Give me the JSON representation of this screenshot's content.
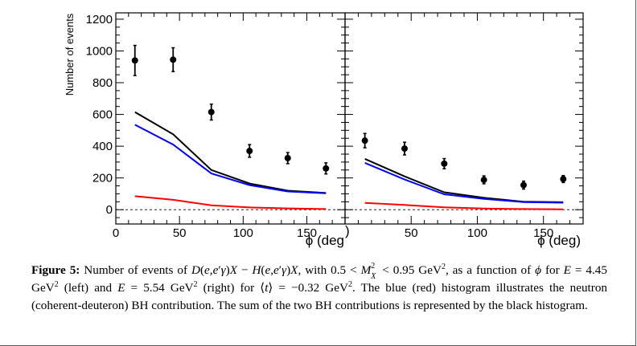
{
  "chart_data": [
    {
      "type": "line",
      "panel": "left",
      "ylabel": "Number of events",
      "xlabel": "",
      "ylim": [
        -90,
        1240
      ],
      "xlim": [
        0,
        180
      ],
      "yticks": [
        0,
        200,
        400,
        600,
        800,
        1000,
        1200
      ],
      "xticks": [
        0,
        50,
        100,
        150
      ],
      "x": [
        15,
        45,
        75,
        105,
        135,
        165
      ],
      "data_points": {
        "y": [
          940,
          945,
          615,
          370,
          325,
          260
        ],
        "yerr": [
          95,
          75,
          50,
          40,
          35,
          35
        ]
      },
      "series": [
        {
          "color": "#000000",
          "values": [
            615,
            475,
            250,
            165,
            120,
            105
          ]
        },
        {
          "color": "#0000ff",
          "values": [
            535,
            410,
            228,
            155,
            115,
            103
          ]
        },
        {
          "color": "#ff0000",
          "values": [
            85,
            62,
            28,
            14,
            8,
            4
          ]
        }
      ]
    },
    {
      "type": "line",
      "panel": "right",
      "xlabel": "ϕ (deg)",
      "ylim": [
        -90,
        1240
      ],
      "xlim": [
        0,
        180
      ],
      "xticks": [
        50,
        100,
        150
      ],
      "x": [
        15,
        45,
        75,
        105,
        135,
        165
      ],
      "data_points": {
        "y": [
          435,
          385,
          290,
          188,
          155,
          193
        ],
        "yerr": [
          45,
          40,
          32,
          25,
          25,
          22
        ]
      },
      "series": [
        {
          "color": "#000000",
          "values": [
            320,
            210,
            110,
            75,
            50,
            47
          ]
        },
        {
          "color": "#0000ff",
          "values": [
            295,
            190,
            97,
            68,
            48,
            44
          ]
        },
        {
          "color": "#ff0000",
          "values": [
            43,
            30,
            15,
            7,
            4,
            2
          ]
        }
      ]
    }
  ],
  "left_xlabel": "ϕ (deg",
  "left_xlabel_paren": ")",
  "caption": {
    "label": "Figure 5:",
    "t1": " Number of events of ",
    "m1": "D",
    "t2": "(",
    "m2": "e",
    "t3": ",",
    "m3": "e",
    "t4": "′",
    "m4": "γ",
    "t5": ")",
    "m5": "X",
    "t6": " − ",
    "m6": "H",
    "t7": "(",
    "m7": "e",
    "t8": ",",
    "m8": "e",
    "t9": "′",
    "m9": "γ",
    "t10": ")",
    "m10": "X",
    "t11": ", with 0.5 < ",
    "m11": "M",
    "sup1": "2",
    "sub1": "X",
    "t12": " < 0.95 GeV",
    "sup2": "2",
    "t13": ", as a function of ",
    "m12": "ϕ",
    "t14": " for ",
    "m13": "E",
    "t15": " = 4.45  GeV",
    "sup3": "2",
    "t16": " (left) and ",
    "m14": "E",
    "t17": " = 5.54  GeV",
    "sup4": "2",
    "t18": " (right) for ⟨",
    "m15": "t",
    "t19": "⟩ = −0.32 GeV",
    "sup5": "2",
    "t20": ". The blue (red) histogram illustrates the neutron (coherent-deuteron) BH contribution.  The sum of the two BH contributions is represented by the black histogram."
  }
}
